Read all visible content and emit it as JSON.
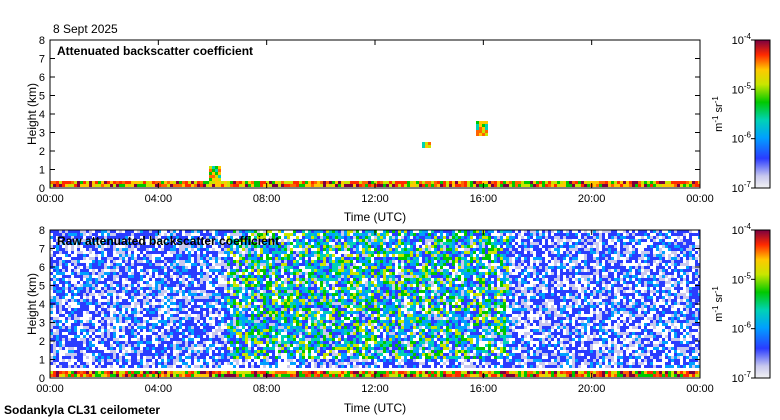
{
  "date_label": "8 Sept 2025",
  "footer_label": "Sodankyla CL31 ceilometer",
  "chart_data": [
    {
      "type": "heatmap",
      "title": "Attenuated backscatter coefficient",
      "xlabel": "Time (UTC)",
      "ylabel": "Height (km)",
      "xticks": [
        "00:00",
        "04:00",
        "08:00",
        "12:00",
        "16:00",
        "20:00",
        "00:00"
      ],
      "yticks": [
        "0",
        "1",
        "2",
        "3",
        "4",
        "5",
        "6",
        "7",
        "8"
      ],
      "xlim": [
        0,
        24
      ],
      "ylim": [
        0,
        8
      ],
      "colorbar": {
        "scale": "log",
        "range": [
          1e-07,
          0.0001
        ],
        "ticks": [
          {
            "mantissa": "10",
            "exponent": "-4"
          },
          {
            "mantissa": "10",
            "exponent": "-5"
          },
          {
            "mantissa": "10",
            "exponent": "-6"
          },
          {
            "mantissa": "10",
            "exponent": "-7"
          }
        ],
        "unit": {
          "m": "m",
          "m_exp": "-1",
          "sr": "sr",
          "sr_exp": "-1"
        }
      },
      "features": [
        {
          "kind": "surface-layer",
          "time_range": [
            0,
            24
          ],
          "height_range": [
            0,
            0.4
          ]
        },
        {
          "kind": "cloud-spot",
          "time": 13.9,
          "height_range": [
            2.1,
            2.5
          ]
        },
        {
          "kind": "cloud-spot",
          "time": 15.9,
          "height_range": [
            2.8,
            3.6
          ]
        },
        {
          "kind": "plume",
          "time": 6.1,
          "height_range": [
            0.2,
            1.2
          ]
        }
      ]
    },
    {
      "type": "heatmap",
      "title": "Raw attenuated backscatter coefficient",
      "xlabel": "Time (UTC)",
      "ylabel": "Height (km)",
      "xticks": [
        "00:00",
        "04:00",
        "08:00",
        "12:00",
        "16:00",
        "20:00",
        "00:00"
      ],
      "yticks": [
        "0",
        "1",
        "2",
        "3",
        "4",
        "5",
        "6",
        "7",
        "8"
      ],
      "xlim": [
        0,
        24
      ],
      "ylim": [
        0,
        8
      ],
      "colorbar": {
        "scale": "log",
        "range": [
          1e-07,
          0.0001
        ],
        "ticks": [
          {
            "mantissa": "10",
            "exponent": "-4"
          },
          {
            "mantissa": "10",
            "exponent": "-5"
          },
          {
            "mantissa": "10",
            "exponent": "-6"
          },
          {
            "mantissa": "10",
            "exponent": "-7"
          }
        ],
        "unit": {
          "m": "m",
          "m_exp": "-1",
          "sr": "sr",
          "sr_exp": "-1"
        }
      },
      "features": [
        {
          "kind": "noise-field",
          "time_range": [
            0,
            24
          ],
          "height_range": [
            0.5,
            8
          ]
        },
        {
          "kind": "enhanced-noise",
          "time_range": [
            6.5,
            17
          ],
          "height_range": [
            1,
            8
          ]
        },
        {
          "kind": "surface-layer",
          "time_range": [
            0,
            24
          ],
          "height_range": [
            0,
            0.4
          ]
        }
      ]
    }
  ]
}
